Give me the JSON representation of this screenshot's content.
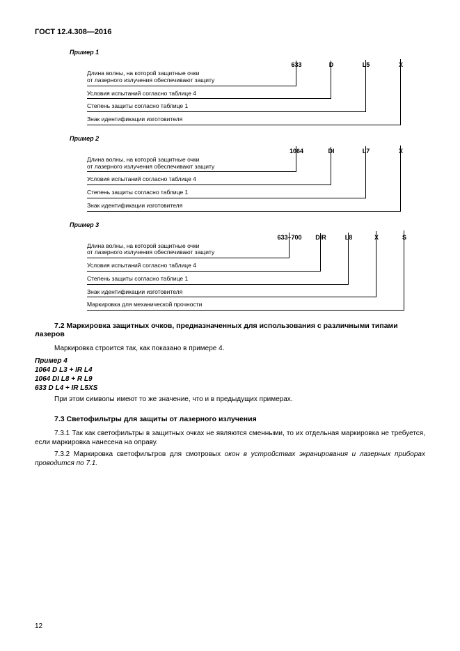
{
  "doc_id": "ГОСТ 12.4.308—2016",
  "examples": [
    {
      "title": "Пример 1",
      "codes": [
        "633",
        "D",
        "L5",
        "X"
      ],
      "code_widths": [
        50,
        50,
        50,
        50
      ],
      "labels": [
        "Длина волны, на которой защитные очки\nот лазерного излучения обеспечивают защиту",
        "Условия испытаний согласно таблице 4",
        "Степень защиты согласно таблице 1",
        "Знак идентификации изготовителя"
      ],
      "base_text_width": 215,
      "rise_base": 86,
      "rise_step": 22
    },
    {
      "title": "Пример 2",
      "codes": [
        "1064",
        "DI",
        "L7",
        "X"
      ],
      "code_widths": [
        50,
        50,
        50,
        50
      ],
      "labels": [
        "Длина волны, на которой защитные очки\nот лазерного излучения обеспечивают защиту",
        "Условия испытаний согласно таблице 4",
        "Степень защиты согласно таблице 1",
        "Знак идентификации изготовителя"
      ],
      "base_text_width": 215,
      "rise_base": 86,
      "rise_step": 22
    },
    {
      "title": "Пример 3",
      "codes": [
        "633–700",
        "DIR",
        "L8",
        "X",
        "S"
      ],
      "code_widths": [
        50,
        40,
        40,
        40,
        40
      ],
      "labels": [
        "Длина волны, на которой защитные очки\nот лазерного излучения обеспечивают защиту",
        "Условия испытаний согласно таблице 4",
        "Степень защиты согласно таблице 1",
        "Знак идентификации изготовителя",
        "Маркировка для механической прочности"
      ],
      "base_text_width": 215,
      "rise_base": 108,
      "rise_step": 22
    }
  ],
  "sec72_heading": "7.2 Маркировка защитных очков, предназначенных для использования с различными типами лазеров",
  "sec72_para1": "Маркировка строится так, как показано в примере 4.",
  "example4_title": "Пример 4",
  "example4_lines": [
    "1064 D L3 + IR L4",
    "1064 DI L8 + R L9",
    "633 D L4 + IR L5XS"
  ],
  "sec72_para2": "При этом символы имеют то же значение, что и в предыдущих примерах.",
  "sec73_heading": "7.3 Светофильтры для защиты от лазерного излучения",
  "sec731": "7.3.1 Так как светофильтры в защитных очках не являются сменными, то их отдельная маркировка не требуется, если маркировка нанесена на оправу.",
  "sec732_a": "7.3.2 Маркировка светофильтров для смотровых ",
  "sec732_b": "окон в устройствах экранирования и лазерных приборах проводится по 7.1.",
  "page_number": "12"
}
